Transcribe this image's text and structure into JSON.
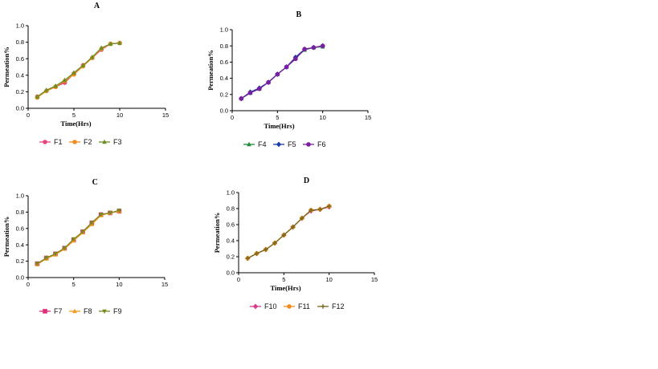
{
  "chart_data": [
    {
      "type": "line",
      "title": "A",
      "xlabel": "Time(Hrs)",
      "ylabel": "Permeation%",
      "xlim": [
        0,
        15
      ],
      "ylim": [
        0,
        1.0
      ],
      "xticks": [
        "0",
        "5",
        "10",
        "15"
      ],
      "yticks": [
        "0.0",
        "0.2",
        "0.4",
        "0.6",
        "0.8",
        "1.0"
      ],
      "legend_position": "bottom",
      "series": [
        {
          "name": "F1",
          "color": "#e8447a",
          "marker": "circle",
          "x": [
            1,
            2,
            3,
            4,
            5,
            6,
            7,
            8,
            9,
            10
          ],
          "y": [
            0.14,
            0.21,
            0.26,
            0.31,
            0.42,
            0.52,
            0.61,
            0.71,
            0.78,
            0.79
          ]
        },
        {
          "name": "F2",
          "color": "#f08c1e",
          "marker": "circle",
          "x": [
            1,
            2,
            3,
            4,
            5,
            6,
            7,
            8,
            9,
            10
          ],
          "y": [
            0.13,
            0.21,
            0.26,
            0.33,
            0.41,
            0.51,
            0.61,
            0.72,
            0.78,
            0.79
          ]
        },
        {
          "name": "F3",
          "color": "#6b8e23",
          "marker": "triangle",
          "x": [
            1,
            2,
            3,
            4,
            5,
            6,
            7,
            8,
            9,
            10
          ],
          "y": [
            0.14,
            0.22,
            0.27,
            0.34,
            0.43,
            0.52,
            0.62,
            0.73,
            0.78,
            0.79
          ]
        }
      ]
    },
    {
      "type": "line",
      "title": "B",
      "xlabel": "Time(Hrs)",
      "ylabel": "Permeation%",
      "xlim": [
        0,
        15
      ],
      "ylim": [
        0,
        1.0
      ],
      "xticks": [
        "0",
        "5",
        "10",
        "15"
      ],
      "yticks": [
        "0.0",
        "0.2",
        "0.4",
        "0.6",
        "0.8",
        "1.0"
      ],
      "legend_position": "bottom",
      "series": [
        {
          "name": "F4",
          "color": "#1f8a3a",
          "marker": "triangle",
          "x": [
            1,
            2,
            3,
            4,
            5,
            6,
            7,
            8,
            9,
            10
          ],
          "y": [
            0.15,
            0.22,
            0.27,
            0.35,
            0.45,
            0.54,
            0.65,
            0.75,
            0.78,
            0.79
          ]
        },
        {
          "name": "F5",
          "color": "#1e3fa8",
          "marker": "diamond",
          "x": [
            1,
            2,
            3,
            4,
            5,
            6,
            7,
            8,
            9,
            10
          ],
          "y": [
            0.15,
            0.23,
            0.28,
            0.35,
            0.45,
            0.54,
            0.66,
            0.76,
            0.78,
            0.8
          ]
        },
        {
          "name": "F6",
          "color": "#7a1fa0",
          "marker": "circle",
          "x": [
            1,
            2,
            3,
            4,
            5,
            6,
            7,
            8,
            9,
            10
          ],
          "y": [
            0.15,
            0.22,
            0.27,
            0.35,
            0.45,
            0.54,
            0.64,
            0.76,
            0.78,
            0.8
          ]
        }
      ]
    },
    {
      "type": "line",
      "title": "C",
      "xlabel": "",
      "ylabel": "Permeation%",
      "xlim": [
        0,
        15
      ],
      "ylim": [
        0,
        1.0
      ],
      "xticks": [
        "0",
        "5",
        "10",
        "15"
      ],
      "yticks": [
        "0.0",
        "0.2",
        "0.4",
        "0.6",
        "0.8",
        "1.0"
      ],
      "legend_position": "bottom",
      "series": [
        {
          "name": "F7",
          "color": "#e02a7a",
          "marker": "square",
          "x": [
            1,
            2,
            3,
            4,
            5,
            6,
            7,
            8,
            9,
            10
          ],
          "y": [
            0.17,
            0.24,
            0.29,
            0.36,
            0.46,
            0.56,
            0.67,
            0.77,
            0.79,
            0.81
          ]
        },
        {
          "name": "F8",
          "color": "#f09a1e",
          "marker": "triangle",
          "x": [
            1,
            2,
            3,
            4,
            5,
            6,
            7,
            8,
            9,
            10
          ],
          "y": [
            0.16,
            0.23,
            0.28,
            0.35,
            0.45,
            0.55,
            0.65,
            0.76,
            0.79,
            0.81
          ]
        },
        {
          "name": "F9",
          "color": "#7a8a1e",
          "marker": "triangle-down",
          "x": [
            1,
            2,
            3,
            4,
            5,
            6,
            7,
            8,
            9,
            10
          ],
          "y": [
            0.17,
            0.24,
            0.29,
            0.36,
            0.47,
            0.56,
            0.67,
            0.77,
            0.79,
            0.82
          ]
        }
      ]
    },
    {
      "type": "line",
      "title": "D",
      "xlabel": "Time(Hrs)",
      "ylabel": "Permeation%",
      "xlim": [
        0,
        15
      ],
      "ylim": [
        0,
        1.0
      ],
      "xticks": [
        "0",
        "5",
        "10",
        "15"
      ],
      "yticks": [
        "0.0",
        "0.2",
        "0.4",
        "0.6",
        "0.8",
        "1.0"
      ],
      "legend_position": "bottom",
      "series": [
        {
          "name": "F10",
          "color": "#d63a8a",
          "marker": "diamond",
          "x": [
            1,
            2,
            3,
            4,
            5,
            6,
            7,
            8,
            9,
            10
          ],
          "y": [
            0.18,
            0.24,
            0.29,
            0.37,
            0.47,
            0.57,
            0.68,
            0.77,
            0.79,
            0.82
          ]
        },
        {
          "name": "F11",
          "color": "#f08c1e",
          "marker": "circle",
          "x": [
            1,
            2,
            3,
            4,
            5,
            6,
            7,
            8,
            9,
            10
          ],
          "y": [
            0.18,
            0.24,
            0.29,
            0.37,
            0.47,
            0.57,
            0.68,
            0.78,
            0.79,
            0.83
          ]
        },
        {
          "name": "F12",
          "color": "#7a6a1e",
          "marker": "plus",
          "x": [
            1,
            2,
            3,
            4,
            5,
            6,
            7,
            8,
            9,
            10
          ],
          "y": [
            0.18,
            0.24,
            0.29,
            0.37,
            0.47,
            0.57,
            0.68,
            0.78,
            0.79,
            0.83
          ]
        }
      ]
    }
  ]
}
